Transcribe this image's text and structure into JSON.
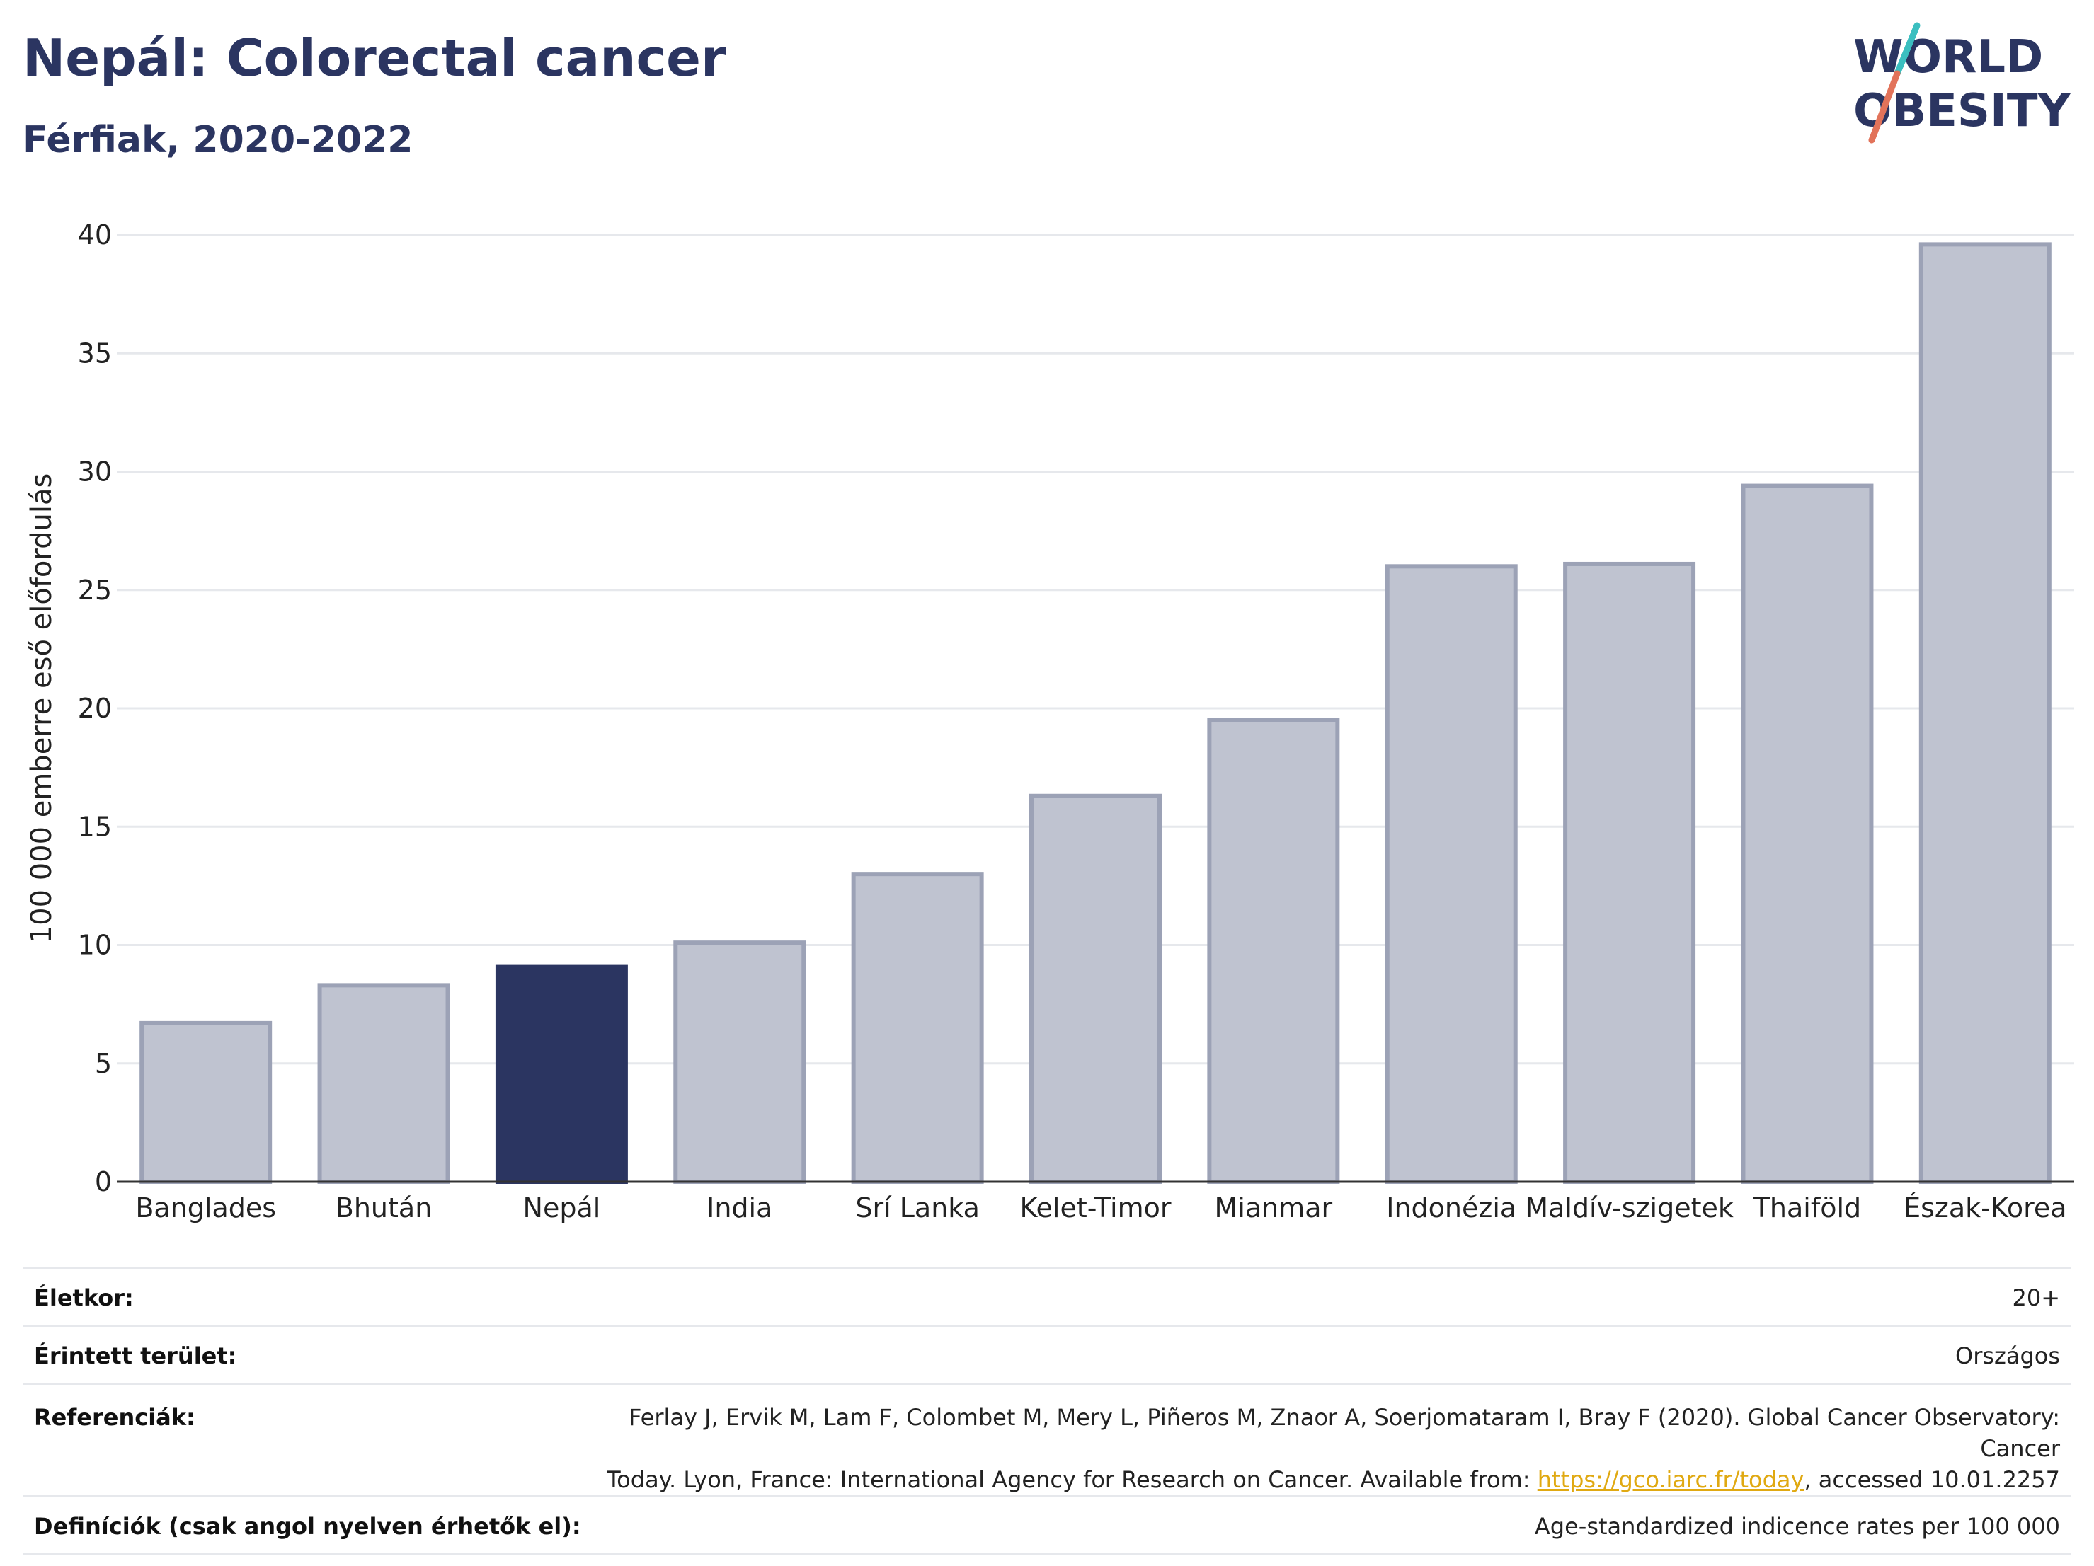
{
  "header": {
    "title": "Nepál: Colorectal cancer",
    "subtitle": "Férfiak, 2020-2022"
  },
  "logo": {
    "line1": "WORLD",
    "line2": "OBESITY",
    "colors": {
      "text": "#2b3561",
      "slash_top": "#3bbfc0",
      "slash_bottom": "#e2735a"
    }
  },
  "chart_data": {
    "type": "bar",
    "title": "",
    "xlabel": "",
    "ylabel": "100 000 emberre eső előfordulás",
    "ylim": [
      0,
      40
    ],
    "yticks": [
      0,
      5,
      10,
      15,
      20,
      25,
      30,
      35,
      40
    ],
    "grid": true,
    "legend": "none",
    "categories": [
      "Banglades",
      "Bhután",
      "Nepál",
      "India",
      "Srí Lanka",
      "Kelet-Timor",
      "Mianmar",
      "Indonézia",
      "Maldív-szigetek",
      "Thaiföld",
      "Észak-Korea"
    ],
    "values": [
      6.7,
      8.3,
      9.1,
      10.1,
      13.0,
      16.3,
      19.5,
      26.0,
      26.1,
      29.4,
      39.6
    ],
    "highlight": "Nepál",
    "colors": {
      "highlight": "#2b3561",
      "other_fill": "#bfc3d0",
      "other_stroke": "#9ca2b6"
    }
  },
  "meta": {
    "age_label": "Életkor:",
    "age_value": "20+",
    "area_label": "Érintett terület:",
    "area_value": "Országos",
    "ref_label": "Referenciák:",
    "ref_line1": "Ferlay J, Ervik M, Lam F, Colombet M, Mery L, Piñeros M, Znaor A, Soerjomataram I, Bray F (2020). Global Cancer Observatory: Cancer",
    "ref_line2_pre": "Today. Lyon, France: International Agency for Research on Cancer. Available from: ",
    "ref_link": "https://gco.iarc.fr/today",
    "ref_line2_post": ", accessed 10.01.2257",
    "def_label": "Definíciók (csak angol nyelven érhetők el):",
    "def_value": "Age-standardized indicence rates per 100 000"
  }
}
